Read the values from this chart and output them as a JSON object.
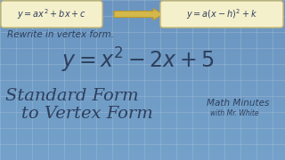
{
  "bg_top": "#cddae6",
  "bg_bottom": "#b8cfe0",
  "box_color": "#f5f0cc",
  "box_edge": "#c8b870",
  "arrow_color": "#d4b84a",
  "arrow_edge": "#b89830",
  "dark_blue": "#2e3f5c",
  "grid_color": "#b0c8dc",
  "rewrite_label": "Rewrite in vertex form.",
  "title_line1": "Standard Form",
  "title_line2": "to Vertex Form",
  "brand_line1": "Math Minutes",
  "brand_line2": "with Mr. White"
}
